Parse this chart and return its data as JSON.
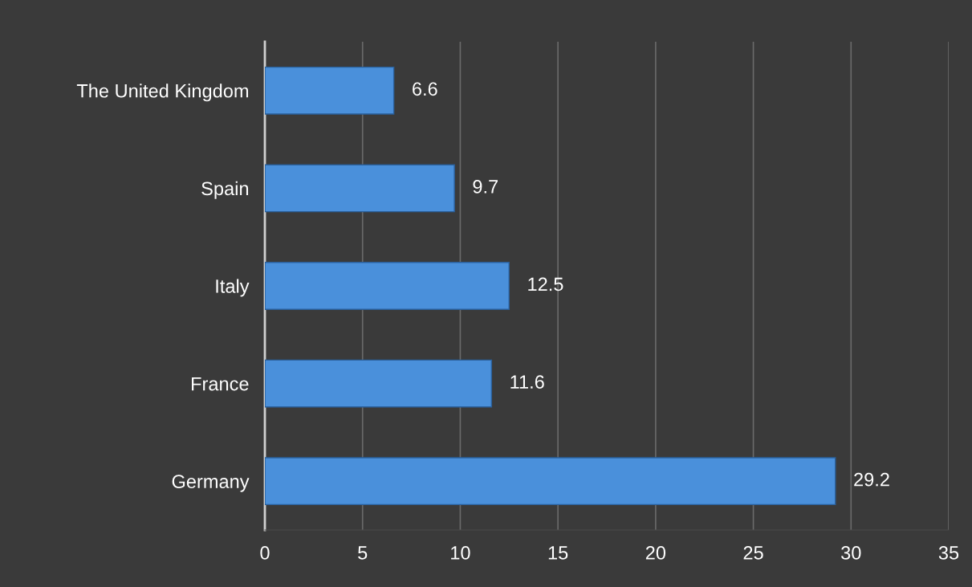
{
  "chart_data": {
    "type": "bar",
    "orientation": "horizontal",
    "categories": [
      "The United Kingdom",
      "Spain",
      "Italy",
      "France",
      "Germany"
    ],
    "values": [
      6.6,
      9.7,
      12.5,
      11.6,
      29.2
    ],
    "color": "#4a90db",
    "xlim": [
      0,
      35
    ],
    "xticks": [
      0,
      5,
      10,
      15,
      20,
      25,
      30,
      35
    ],
    "grid": "x",
    "data_labels": true
  }
}
